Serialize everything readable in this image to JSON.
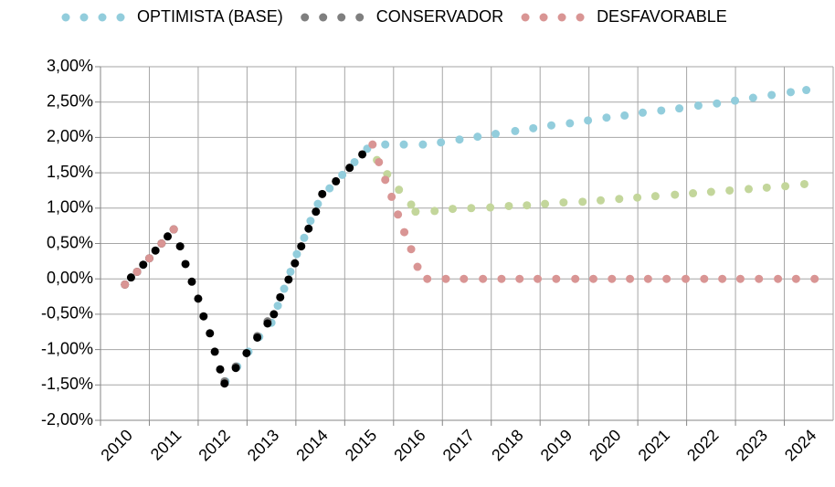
{
  "chart_data": {
    "type": "scatter",
    "xlim": [
      2010,
      2025
    ],
    "xticks": [
      2010,
      2011,
      2012,
      2013,
      2014,
      2015,
      2016,
      2017,
      2018,
      2019,
      2020,
      2021,
      2022,
      2023,
      2024
    ],
    "ylim": [
      -2,
      3
    ],
    "yticks": [
      {
        "value": -2,
        "label": "-2,00%"
      },
      {
        "value": -1.5,
        "label": "-1,50%"
      },
      {
        "value": -1,
        "label": "-1,00%"
      },
      {
        "value": -0.5,
        "label": "-0,50%"
      },
      {
        "value": 0,
        "label": "0,00%"
      },
      {
        "value": 0.5,
        "label": "0,50%"
      },
      {
        "value": 1,
        "label": "1,00%"
      },
      {
        "value": 1.5,
        "label": "1,50%"
      },
      {
        "value": 2,
        "label": "2,00%"
      },
      {
        "value": 2.5,
        "label": "2,50%"
      },
      {
        "value": 3,
        "label": "3,00%"
      }
    ],
    "grid": true,
    "legend": "top",
    "series": [
      {
        "name": "OPTIMISTA (BASE)",
        "color": "#92cddc",
        "x": [
          2012.56,
          2012.8,
          2013.03,
          2013.25,
          2013.5,
          2013.63,
          2013.76,
          2013.89,
          2014.02,
          2014.17,
          2014.3,
          2014.45,
          2014.69,
          2014.95,
          2015.2,
          2015.46,
          2015.83,
          2016.21,
          2016.6,
          2016.97,
          2017.35,
          2017.72,
          2018.09,
          2018.49,
          2018.86,
          2019.23,
          2019.61,
          2019.98,
          2020.36,
          2020.73,
          2021.1,
          2021.48,
          2021.85,
          2022.24,
          2022.62,
          2022.99,
          2023.36,
          2023.74,
          2024.13,
          2024.45
        ],
        "values": [
          -1.45,
          -1.24,
          -1.03,
          -0.82,
          -0.62,
          -0.38,
          -0.14,
          0.1,
          0.35,
          0.58,
          0.82,
          1.06,
          1.28,
          1.47,
          1.65,
          1.84,
          1.9,
          1.9,
          1.9,
          1.93,
          1.97,
          2.01,
          2.05,
          2.09,
          2.13,
          2.17,
          2.2,
          2.24,
          2.28,
          2.31,
          2.35,
          2.38,
          2.41,
          2.45,
          2.48,
          2.52,
          2.56,
          2.6,
          2.64,
          2.67
        ]
      },
      {
        "name": "CONSERVADOR",
        "color": "#7f7f7f",
        "x": [
          2012.54,
          2012.77,
          2013.21,
          2013.42
        ],
        "values": [
          -1.45,
          -1.24,
          -0.81,
          -0.6
        ]
      },
      {
        "color": "#c3d69b",
        "x": [
          2015.66,
          2015.87,
          2016.11,
          2016.36,
          2016.45,
          2016.84,
          2017.21,
          2017.59,
          2017.98,
          2018.36,
          2018.73,
          2019.1,
          2019.48,
          2019.87,
          2020.24,
          2020.62,
          2020.99,
          2021.36,
          2021.76,
          2022.13,
          2022.5,
          2022.88,
          2023.27,
          2023.64,
          2024.02,
          2024.41
        ],
        "values": [
          1.68,
          1.48,
          1.26,
          1.05,
          0.95,
          0.96,
          0.99,
          1.0,
          1.01,
          1.03,
          1.04,
          1.06,
          1.08,
          1.09,
          1.11,
          1.13,
          1.15,
          1.17,
          1.19,
          1.21,
          1.23,
          1.25,
          1.27,
          1.29,
          1.31,
          1.34
        ]
      },
      {
        "color": "#000000",
        "x": [
          2010.5,
          2010.625,
          2010.75,
          2010.875,
          2011.0,
          2011.125,
          2011.25,
          2011.375,
          2011.5,
          2011.63,
          2011.74,
          2011.87,
          2012.0,
          2012.11,
          2012.24,
          2012.34,
          2012.45,
          2012.54,
          2012.77,
          2012.99,
          2013.21,
          2013.42,
          2013.55,
          2013.68,
          2013.85,
          2013.98,
          2014.11,
          2014.26,
          2014.41,
          2014.54,
          2014.82,
          2015.1,
          2015.36
        ],
        "values": [
          -0.08,
          0.02,
          0.1,
          0.2,
          0.29,
          0.4,
          0.5,
          0.6,
          0.7,
          0.46,
          0.21,
          -0.04,
          -0.28,
          -0.53,
          -0.77,
          -1.03,
          -1.28,
          -1.48,
          -1.26,
          -1.05,
          -0.83,
          -0.63,
          -0.5,
          -0.26,
          -0.01,
          0.22,
          0.46,
          0.71,
          0.95,
          1.2,
          1.38,
          1.57,
          1.76
        ]
      },
      {
        "name": "DESFAVORABLE",
        "color": "#d99594",
        "x": [
          2010.5,
          2010.75,
          2011.0,
          2011.25,
          2011.5,
          2015.57,
          2015.7,
          2015.83,
          2015.96,
          2016.09,
          2016.22,
          2016.36,
          2016.49,
          2016.69,
          2017.07,
          2017.44,
          2017.83,
          2018.21,
          2018.58,
          2018.95,
          2019.33,
          2019.72,
          2020.09,
          2020.47,
          2020.84,
          2021.21,
          2021.59,
          2021.98,
          2022.36,
          2022.73,
          2023.1,
          2023.48,
          2023.87,
          2024.24,
          2024.62
        ],
        "values": [
          -0.08,
          0.1,
          0.29,
          0.5,
          0.7,
          1.9,
          1.65,
          1.4,
          1.16,
          0.91,
          0.66,
          0.42,
          0.17,
          0,
          0,
          0,
          0,
          0,
          0,
          0,
          0,
          0,
          0,
          0,
          0,
          0,
          0,
          0,
          0,
          0,
          0,
          0,
          0,
          0,
          0
        ]
      }
    ]
  }
}
